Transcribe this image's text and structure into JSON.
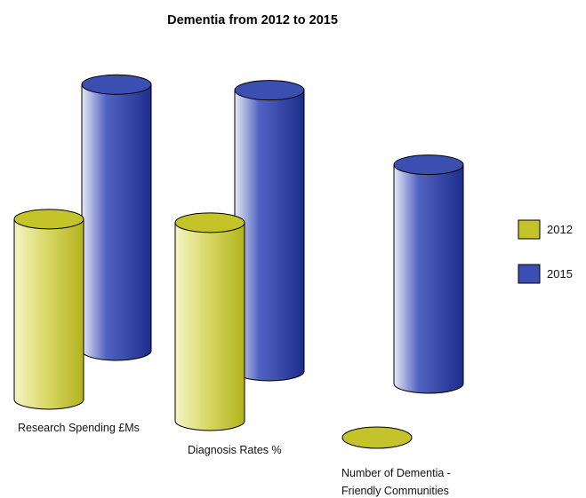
{
  "chart_data": {
    "type": "bar",
    "title": "Dementia from 2012 to 2015",
    "xlabel": "",
    "ylabel": "",
    "categories": [
      "Research Spending £Ms",
      "Diagnosis Rates %",
      "Number of Dementia - Friendly Communities"
    ],
    "category_label_lines": [
      [
        "Research Spending £Ms"
      ],
      [
        "Diagnosis Rates %"
      ],
      [
        "Number of Dementia -",
        "Friendly Communities"
      ]
    ],
    "series": [
      {
        "name": "2012",
        "values": [
          61,
          67,
          0
        ],
        "color": "#c4c42a"
      },
      {
        "name": "2015",
        "values": [
          90,
          95,
          74
        ],
        "color": "#3a4fb0"
      }
    ],
    "ylim": [
      0,
      100
    ],
    "grid": false,
    "legend_position": "right",
    "style": "3d-cylinder"
  }
}
